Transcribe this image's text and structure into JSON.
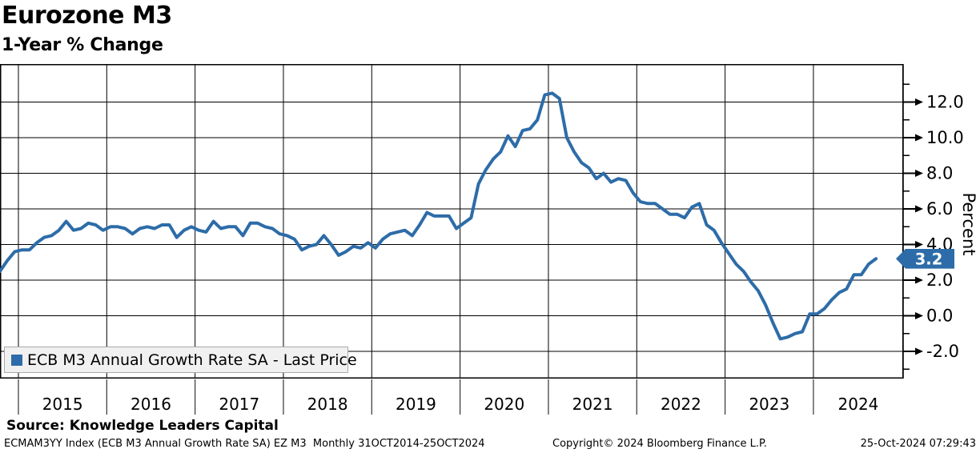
{
  "header": {
    "title": "Eurozone M3",
    "subtitle": "1-Year % Change"
  },
  "legend": {
    "swatch_color": "#2d6ca8",
    "label": "ECB M3 Annual Growth Rate SA - Last Price"
  },
  "y_axis": {
    "title": "Percent",
    "badge": {
      "value": "3.2",
      "color": "#2d6ca8",
      "text_color": "#ffffff"
    }
  },
  "footer": {
    "source": "Source: Knowledge Leaders Capital",
    "security": "ECMAM3YY Index (ECB M3 Annual Growth Rate SA) EZ M3  Monthly 31OCT2014-25OCT2024",
    "copyright": "Copyright© 2024 Bloomberg Finance L.P.",
    "timestamp": "25-Oct-2024 07:29:43"
  },
  "chart_data": {
    "type": "line",
    "title": "Eurozone M3 — 1-Year % Change",
    "ylabel": "Percent",
    "grid": true,
    "legend_position": "bottom-left",
    "ylim": [
      -3.5,
      14.1
    ],
    "yticks_major": [
      12.0,
      10.0,
      8.0,
      6.0,
      4.0,
      2.0,
      0.0,
      -2.0
    ],
    "yticks_minor": [
      13,
      11,
      9,
      7,
      5,
      3,
      1,
      -1,
      -3
    ],
    "x_year_labels": [
      "2015",
      "2016",
      "2017",
      "2018",
      "2019",
      "2020",
      "2021",
      "2022",
      "2023",
      "2024"
    ],
    "last_price": 3.2,
    "line_color": "#2d6ca8",
    "series": [
      {
        "name": "ECB M3 Annual Growth Rate SA - Last Price",
        "start": "2014-10",
        "frequency": "monthly",
        "values": [
          2.5,
          3.1,
          3.6,
          3.7,
          3.7,
          4.1,
          4.4,
          4.5,
          4.8,
          5.3,
          4.8,
          4.9,
          5.2,
          5.1,
          4.8,
          5.0,
          5.0,
          4.9,
          4.6,
          4.9,
          5.0,
          4.9,
          5.1,
          5.1,
          4.4,
          4.8,
          5.0,
          4.8,
          4.7,
          5.3,
          4.9,
          5.0,
          5.0,
          4.5,
          5.2,
          5.2,
          5.0,
          4.9,
          4.6,
          4.5,
          4.3,
          3.7,
          3.9,
          4.0,
          4.5,
          4.0,
          3.4,
          3.6,
          3.9,
          3.8,
          4.1,
          3.8,
          4.3,
          4.6,
          4.7,
          4.8,
          4.5,
          5.1,
          5.8,
          5.6,
          5.6,
          5.6,
          4.9,
          5.2,
          5.5,
          7.4,
          8.2,
          8.8,
          9.2,
          10.1,
          9.5,
          10.4,
          10.5,
          11.0,
          12.4,
          12.5,
          12.2,
          10.0,
          9.2,
          8.6,
          8.3,
          7.7,
          8.0,
          7.5,
          7.7,
          7.6,
          6.9,
          6.4,
          6.3,
          6.3,
          6.0,
          5.7,
          5.7,
          5.5,
          6.1,
          6.3,
          5.1,
          4.8,
          4.1,
          3.5,
          2.9,
          2.5,
          1.9,
          1.4,
          0.6,
          -0.4,
          -1.3,
          -1.2,
          -1.0,
          -0.9,
          0.1,
          0.1,
          0.4,
          0.9,
          1.3,
          1.5,
          2.3,
          2.3,
          2.9,
          3.2
        ]
      }
    ]
  }
}
